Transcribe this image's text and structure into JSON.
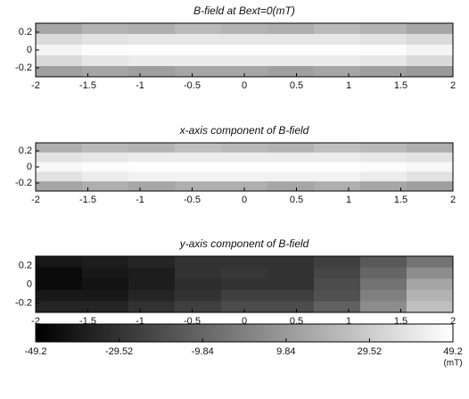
{
  "chart_data": [
    {
      "type": "heatmap",
      "title": "B-field at Bext=0(mT)",
      "xlim": [
        -2,
        2
      ],
      "ylim": [
        -0.3,
        0.3
      ],
      "xticks": [
        -2,
        -1.5,
        -1,
        -0.5,
        0,
        0.5,
        1,
        1.5,
        2
      ],
      "yticks": [
        0.2,
        0,
        -0.2
      ],
      "clim": [
        -49.2,
        49.2
      ],
      "z": [
        [
          15,
          20,
          18,
          22,
          20,
          18,
          22,
          20,
          15
        ],
        [
          35,
          38,
          40,
          40,
          40,
          40,
          40,
          38,
          35
        ],
        [
          45,
          48,
          49,
          49,
          49,
          49,
          49,
          48,
          45
        ],
        [
          35,
          40,
          42,
          42,
          42,
          42,
          42,
          40,
          35
        ],
        [
          12,
          15,
          12,
          15,
          15,
          12,
          15,
          12,
          10
        ]
      ]
    },
    {
      "type": "heatmap",
      "title": "x-axis component of B-field",
      "xlim": [
        -2,
        2
      ],
      "ylim": [
        -0.3,
        0.3
      ],
      "xticks": [
        -2,
        -1.5,
        -1,
        -0.5,
        0,
        0.5,
        1,
        1.5,
        2
      ],
      "yticks": [
        0.2,
        0,
        -0.2
      ],
      "clim": [
        -49.2,
        49.2
      ],
      "z": [
        [
          18,
          22,
          20,
          24,
          22,
          20,
          24,
          22,
          18
        ],
        [
          38,
          40,
          42,
          42,
          42,
          42,
          42,
          40,
          38
        ],
        [
          46,
          48,
          49,
          49,
          49,
          49,
          49,
          48,
          46
        ],
        [
          38,
          42,
          44,
          44,
          44,
          44,
          44,
          42,
          38
        ],
        [
          15,
          18,
          15,
          18,
          18,
          15,
          18,
          15,
          12
        ]
      ]
    },
    {
      "type": "heatmap",
      "title": "y-axis component of B-field",
      "xlim": [
        -2,
        2
      ],
      "ylim": [
        -0.3,
        0.3
      ],
      "xticks": [
        -2,
        -1.5,
        -1,
        -0.5,
        0,
        0.5,
        1,
        1.5,
        2
      ],
      "yticks": [
        0.2,
        0,
        -0.2
      ],
      "clim": [
        -49.2,
        49.2
      ],
      "z": [
        [
          -40,
          -38,
          -35,
          -30,
          -30,
          -30,
          -25,
          -15,
          -5
        ],
        [
          -45,
          -40,
          -38,
          -30,
          -28,
          -30,
          -22,
          -10,
          5
        ],
        [
          -45,
          -42,
          -38,
          -32,
          -30,
          -30,
          -20,
          -5,
          15
        ],
        [
          -40,
          -40,
          -35,
          -30,
          -25,
          -25,
          -18,
          0,
          20
        ],
        [
          -35,
          -35,
          -30,
          -25,
          -20,
          -20,
          -12,
          5,
          25
        ]
      ]
    },
    {
      "type": "colorbar",
      "xlim": [
        -49.2,
        49.2
      ],
      "xticks": [
        -49.2,
        -29.52,
        -9.84,
        9.84,
        29.52,
        49.2
      ],
      "unit": "(mT)"
    }
  ]
}
